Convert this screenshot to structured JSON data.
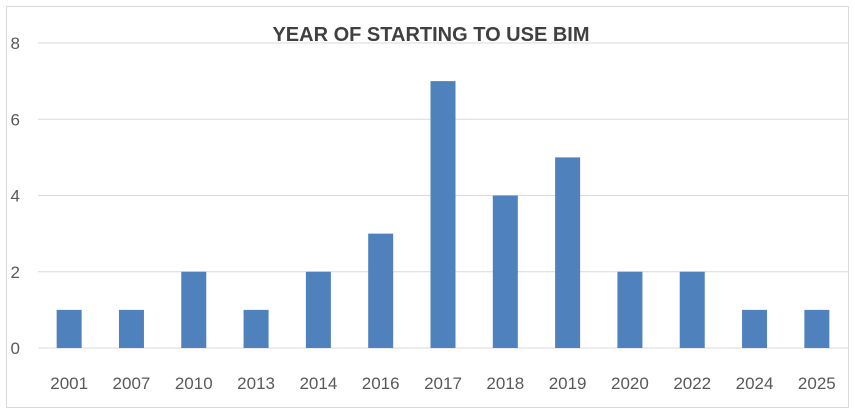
{
  "chart_data": {
    "type": "bar",
    "title": "YEAR OF STARTING TO USE BIM",
    "xlabel": "",
    "ylabel": "",
    "categories": [
      "2001",
      "2007",
      "2010",
      "2013",
      "2014",
      "2016",
      "2017",
      "2018",
      "2019",
      "2020",
      "2022",
      "2024",
      "2025"
    ],
    "values": [
      1,
      1,
      2,
      1,
      2,
      3,
      7,
      4,
      5,
      2,
      2,
      1,
      1
    ],
    "ylim": [
      0,
      8
    ],
    "yticks": [
      0,
      2,
      4,
      6,
      8
    ],
    "grid": true,
    "legend": "none",
    "bar_color": "#4f81bd",
    "grid_color": "#d9d9d9"
  }
}
